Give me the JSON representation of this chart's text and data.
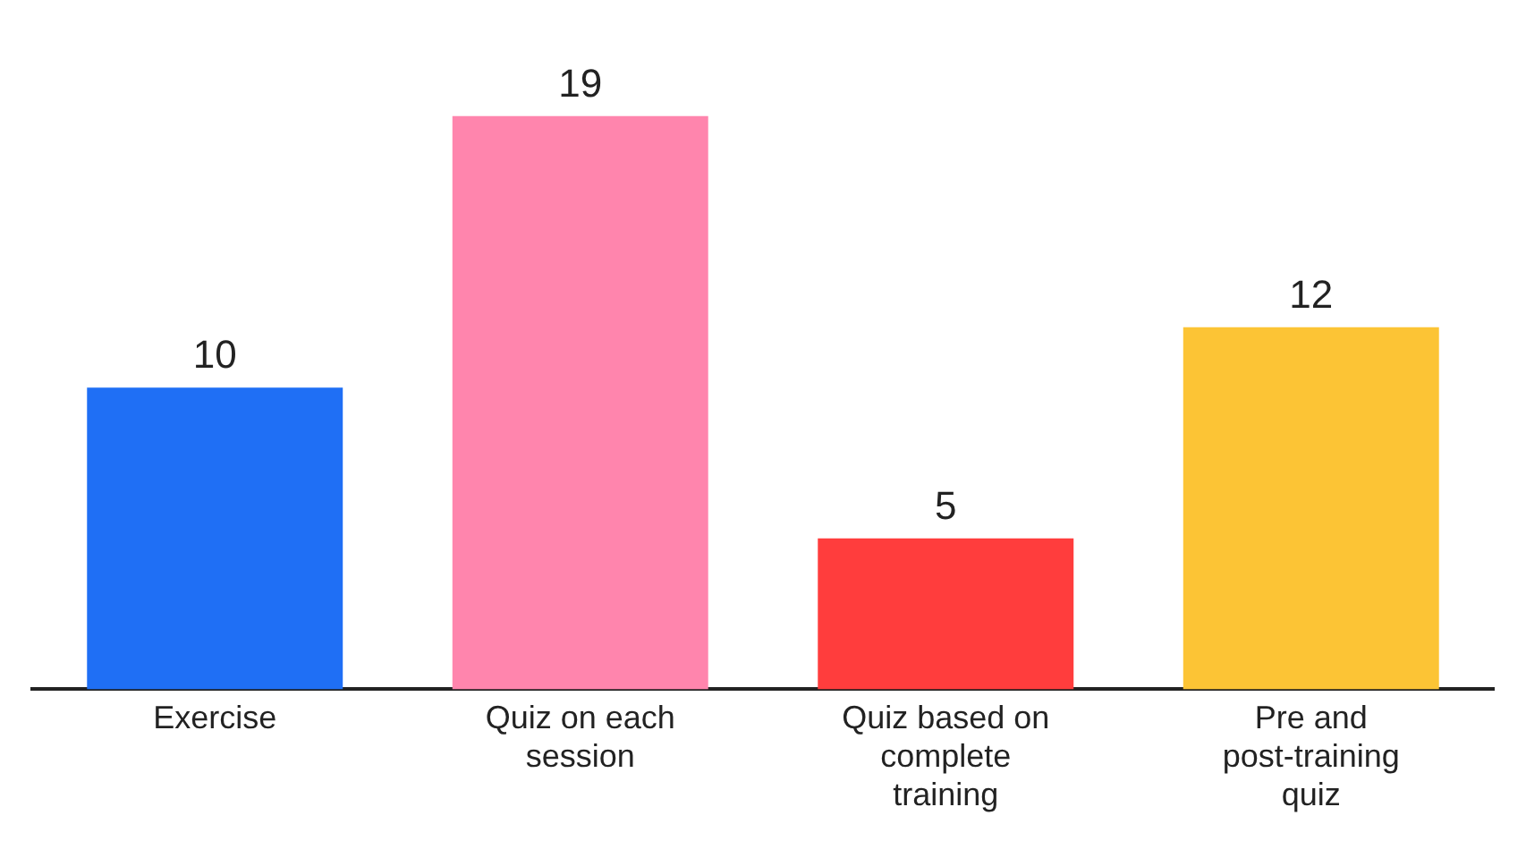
{
  "chart_data": {
    "type": "bar",
    "categories": [
      "Exercise",
      "Quiz on each session",
      "Quiz based on complete training",
      "Pre and post-training quiz"
    ],
    "values": [
      10,
      19,
      5,
      12
    ],
    "colors": [
      "#1f6ff5",
      "#ff85ad",
      "#ff3d3d",
      "#fcc435"
    ],
    "data_labels": true,
    "grid": false,
    "legend": false
  }
}
